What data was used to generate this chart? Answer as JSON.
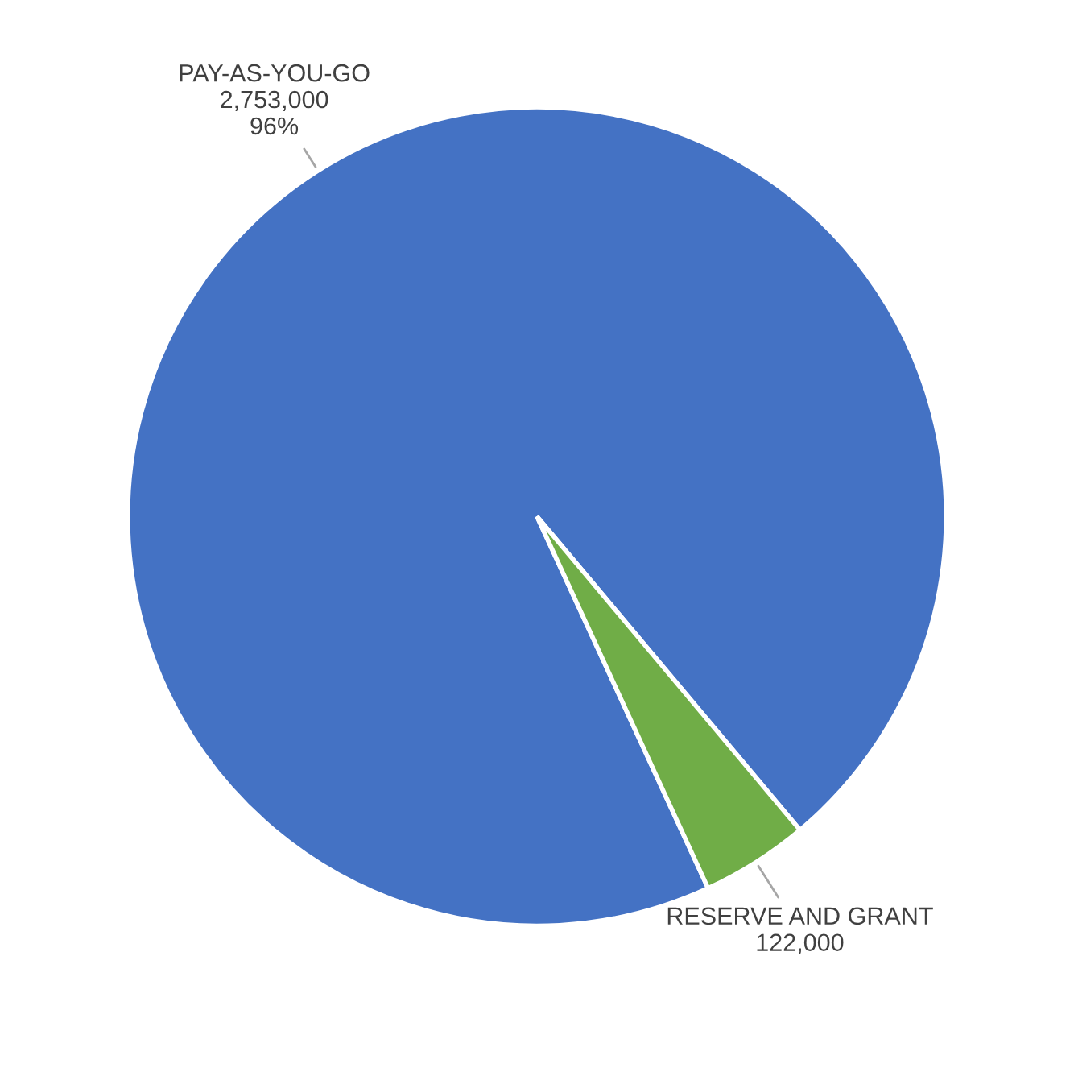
{
  "chart_data": {
    "type": "pie",
    "categories": [
      "PAY-AS-YOU-GO",
      "RESERVE AND GRANT"
    ],
    "values": [
      2753000,
      122000
    ],
    "value_labels": [
      "2,753,000\n96%",
      "122,000"
    ],
    "colors": [
      "#4472c4",
      "#70ad47"
    ]
  }
}
